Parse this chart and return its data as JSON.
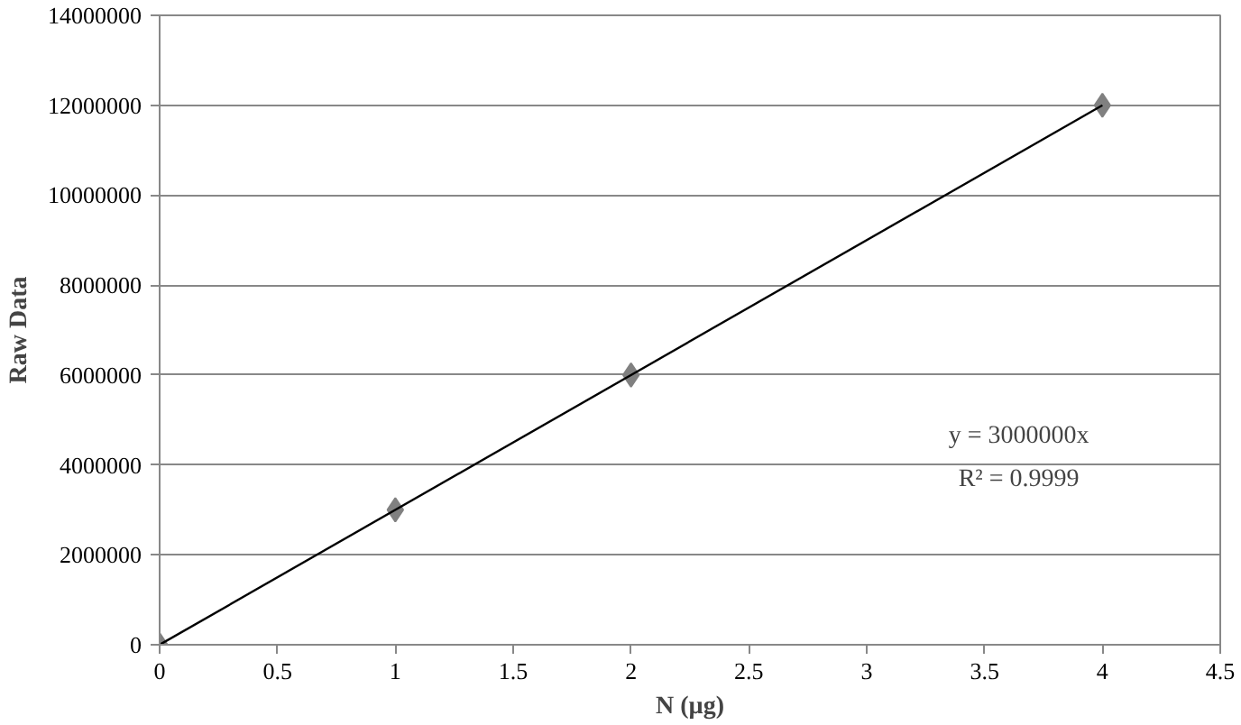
{
  "chart_data": {
    "type": "scatter",
    "xlabel": "N (µg)",
    "ylabel": "Raw Data",
    "x": [
      0,
      1,
      2,
      4
    ],
    "series": [
      {
        "color": "#808080",
        "values": [
          0,
          3000000,
          6000000,
          12000000
        ],
        "marker": "diamond"
      },
      {
        "type": "line",
        "color": "#000000",
        "x": [
          0,
          4
        ],
        "values": [
          0,
          12000000
        ],
        "marker": "none",
        "line_style": "solid"
      }
    ],
    "annotations": [
      "y = 3000000x",
      "R² = 0.9999"
    ],
    "xlim": [
      0,
      4.5
    ],
    "xticks": [
      0,
      0.5,
      1,
      1.5,
      2,
      2.5,
      3,
      3.5,
      4,
      4.5
    ],
    "ylim": [
      0,
      14000000
    ],
    "yticks": [
      0,
      2000000,
      4000000,
      6000000,
      8000000,
      10000000,
      12000000,
      14000000
    ],
    "grid": "y"
  }
}
